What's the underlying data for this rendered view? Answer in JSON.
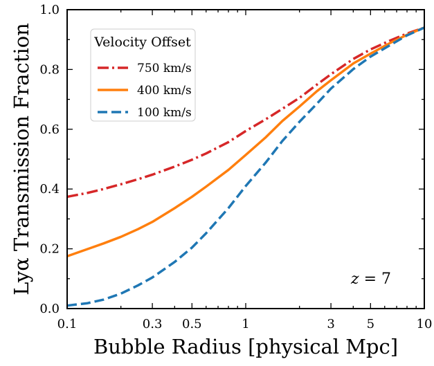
{
  "chart_data": {
    "type": "line",
    "xlabel": "Bubble Radius [physical Mpc]",
    "ylabel": "Lyα Transmission Fraction",
    "xscale": "log",
    "xlim": [
      0.1,
      10
    ],
    "ylim": [
      0.0,
      1.0
    ],
    "x_ticks": [
      {
        "value": 0.1,
        "label": "0.1"
      },
      {
        "value": 0.3,
        "label": "0.3"
      },
      {
        "value": 0.5,
        "label": "0.5"
      },
      {
        "value": 1,
        "label": "1"
      },
      {
        "value": 3,
        "label": "3"
      },
      {
        "value": 5,
        "label": "5"
      },
      {
        "value": 10,
        "label": "10"
      }
    ],
    "y_ticks": [
      {
        "value": 0.0,
        "label": "0.0"
      },
      {
        "value": 0.2,
        "label": "0.2"
      },
      {
        "value": 0.4,
        "label": "0.4"
      },
      {
        "value": 0.6,
        "label": "0.6"
      },
      {
        "value": 0.8,
        "label": "0.8"
      },
      {
        "value": 1.0,
        "label": "1.0"
      }
    ],
    "grid": false,
    "legend": {
      "title": "Velocity Offset",
      "placement": "upper-left"
    },
    "annotation": {
      "prefix": "z",
      "suffix": " = 7"
    },
    "series": [
      {
        "name": "750 km/s",
        "color": "#d62728",
        "dash": "dashdot",
        "x": [
          0.1,
          0.13,
          0.16,
          0.2,
          0.25,
          0.3,
          0.4,
          0.5,
          0.6,
          0.8,
          1.0,
          1.3,
          1.6,
          2.0,
          2.5,
          3.0,
          4.0,
          5.0,
          6.5,
          8.0,
          10.0
        ],
        "y": [
          0.374,
          0.387,
          0.4,
          0.416,
          0.433,
          0.448,
          0.475,
          0.498,
          0.519,
          0.557,
          0.594,
          0.634,
          0.668,
          0.705,
          0.749,
          0.784,
          0.835,
          0.867,
          0.898,
          0.92,
          0.94
        ]
      },
      {
        "name": "400 km/s",
        "color": "#ff7f0e",
        "dash": "solid",
        "x": [
          0.1,
          0.13,
          0.16,
          0.2,
          0.25,
          0.3,
          0.4,
          0.5,
          0.6,
          0.8,
          1.0,
          1.3,
          1.6,
          2.0,
          2.5,
          3.0,
          4.0,
          5.0,
          6.5,
          8.0,
          10.0
        ],
        "y": [
          0.175,
          0.199,
          0.218,
          0.24,
          0.266,
          0.29,
          0.336,
          0.374,
          0.408,
          0.464,
          0.514,
          0.574,
          0.627,
          0.676,
          0.727,
          0.764,
          0.82,
          0.853,
          0.89,
          0.916,
          0.94
        ]
      },
      {
        "name": "100 km/s",
        "color": "#1f77b4",
        "dash": "dashed",
        "x": [
          0.1,
          0.13,
          0.16,
          0.2,
          0.25,
          0.3,
          0.4,
          0.5,
          0.6,
          0.8,
          1.0,
          1.3,
          1.6,
          2.0,
          2.5,
          3.0,
          4.0,
          5.0,
          6.5,
          8.0,
          10.0
        ],
        "y": [
          0.01,
          0.018,
          0.03,
          0.05,
          0.078,
          0.104,
          0.156,
          0.204,
          0.252,
          0.336,
          0.41,
          0.49,
          0.56,
          0.625,
          0.685,
          0.736,
          0.801,
          0.843,
          0.883,
          0.914,
          0.94
        ]
      }
    ]
  }
}
